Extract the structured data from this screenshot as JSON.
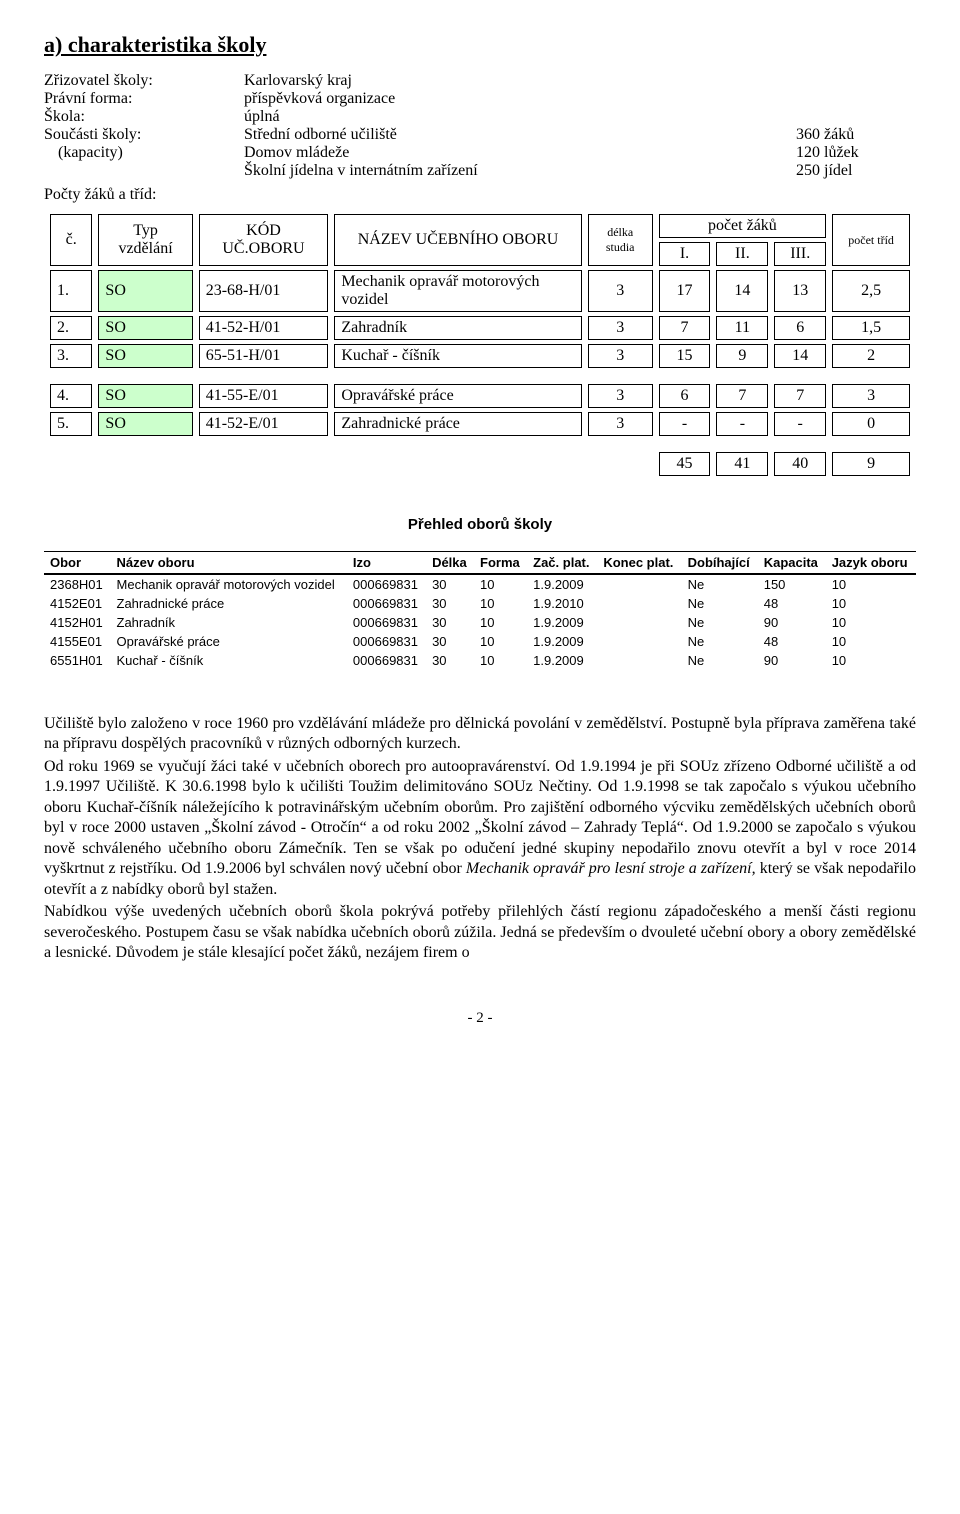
{
  "heading": "a) charakteristika školy",
  "info": {
    "rows": [
      {
        "label": "Zřizovatel školy:",
        "value": "Karlovarský kraj",
        "qty": ""
      },
      {
        "label": "Právní forma:",
        "value": "příspěvková organizace",
        "qty": ""
      },
      {
        "label": "Škola:",
        "value": "úplná",
        "qty": ""
      },
      {
        "label": "Součásti školy:",
        "value": "Střední odborné učiliště",
        "qty": "360 žáků"
      },
      {
        "label": "(kapacity)",
        "value": "Domov mládeže",
        "qty": "120 lůžek",
        "indent": true
      },
      {
        "label": "",
        "value": "Školní jídelna v internátním zařízení",
        "qty": "250 jídel"
      }
    ],
    "counts_label": "Počty žáků a tříd:"
  },
  "mainTable": {
    "header": {
      "col_num": "č.",
      "col_typ": "Typ vzdělání",
      "col_kod": "KÓD UČ.OBORU",
      "col_naz": "NÁZEV UČEBNÍHO OBORU",
      "col_dur": "délka studia",
      "col_cnt": "počet žáků",
      "col_cnt_sub": [
        "I.",
        "II.",
        "III."
      ],
      "col_trid": "počet tříd"
    },
    "groups": [
      {
        "rows": [
          {
            "n": "1.",
            "typ": "SO",
            "kod": "23-68-H/01",
            "naz": "Mechanik opravář motorových vozidel",
            "dur": "3",
            "c1": "17",
            "c2": "14",
            "c3": "13",
            "trid": "2,5"
          },
          {
            "n": "2.",
            "typ": "SO",
            "kod": "41-52-H/01",
            "naz": "Zahradník",
            "dur": "3",
            "c1": "7",
            "c2": "11",
            "c3": "6",
            "trid": "1,5"
          },
          {
            "n": "3.",
            "typ": "SO",
            "kod": "65-51-H/01",
            "naz": "Kuchař - číšník",
            "dur": "3",
            "c1": "15",
            "c2": "9",
            "c3": "14",
            "trid": "2"
          }
        ]
      },
      {
        "rows": [
          {
            "n": "4.",
            "typ": "SO",
            "kod": "41-55-E/01",
            "naz": "Opravářské práce",
            "dur": "3",
            "c1": "6",
            "c2": "7",
            "c3": "7",
            "trid": "3"
          },
          {
            "n": "5.",
            "typ": "SO",
            "kod": "41-52-E/01",
            "naz": "Zahradnické práce",
            "dur": "3",
            "c1": "-",
            "c2": "-",
            "c3": "-",
            "trid": "0"
          }
        ]
      }
    ],
    "totals": {
      "c1": "45",
      "c2": "41",
      "c3": "40",
      "trid": "9"
    }
  },
  "overview": {
    "heading": "Přehled oborů školy",
    "columns": [
      "Obor",
      "Název oboru",
      "Izo",
      "Délka",
      "Forma",
      "Zač. plat.",
      "Konec plat.",
      "Dobíhající",
      "Kapacita",
      "Jazyk oboru"
    ],
    "rows": [
      [
        "2368H01",
        "Mechanik opravář motorových vozidel",
        "000669831",
        "30",
        "10",
        "1.9.2009",
        "",
        "Ne",
        "150",
        "10"
      ],
      [
        "4152E01",
        "Zahradnické práce",
        "000669831",
        "30",
        "10",
        "1.9.2010",
        "",
        "Ne",
        "48",
        "10"
      ],
      [
        "4152H01",
        "Zahradník",
        "000669831",
        "30",
        "10",
        "1.9.2009",
        "",
        "Ne",
        "90",
        "10"
      ],
      [
        "4155E01",
        "Opravářské práce",
        "000669831",
        "30",
        "10",
        "1.9.2009",
        "",
        "Ne",
        "48",
        "10"
      ],
      [
        "6551H01",
        "Kuchař - číšník",
        "000669831",
        "30",
        "10",
        "1.9.2009",
        "",
        "Ne",
        "90",
        "10"
      ]
    ]
  },
  "paragraphs": [
    "Učiliště bylo založeno v roce 1960 pro vzdělávání mládeže pro dělnická povolání v zemědělství. Postupně byla příprava zaměřena také na přípravu dospělých pracovníků v různých odborných kurzech.",
    "Od roku 1969 se vyučují žáci také v učebních oborech pro autoopravárenství. Od 1.9.1994 je při SOUz zřízeno Odborné učiliště a od 1.9.1997 Učiliště. K 30.6.1998 bylo k učilišti Toužim delimitováno SOUz Nečtiny. Od 1.9.1998 se tak započalo s výukou učebního oboru Kuchař-číšník náležejícího k potravinářským učebním oborům. Pro zajištění odborného výcviku zemědělských učebních oborů byl v roce 2000 ustaven „Školní závod - Otročín“ a od roku 2002 „Školní závod – Zahrady Teplá“. Od 1.9.2000 se započalo s výukou nově schváleného učebního oboru Zámečník. Ten se však po odučení jedné skupiny nepodařilo znovu otevřít a byl v roce 2014 vyškrtnut z rejstříku. Od 1.9.2006 byl schválen nový učební obor Mechanik opravář pro lesní stroje a zařízení, který se však nepodařilo otevřít a z nabídky oborů byl stažen.",
    "Nabídkou výše uvedených učebních oborů škola pokrývá potřeby přilehlých částí regionu západočeského a menší části regionu severočeského. Postupem času se však nabídka učebních oborů zúžila. Jedná se především o dvouleté učební obory a obory zemědělské a lesnické. Důvodem je stále klesající počet žáků, nezájem firem o"
  ],
  "para2_italic_fragment": "Mechanik opravář pro lesní stroje a zařízení,",
  "pageNumber": "- 2 -",
  "colors": {
    "green": "#ccffcc"
  }
}
